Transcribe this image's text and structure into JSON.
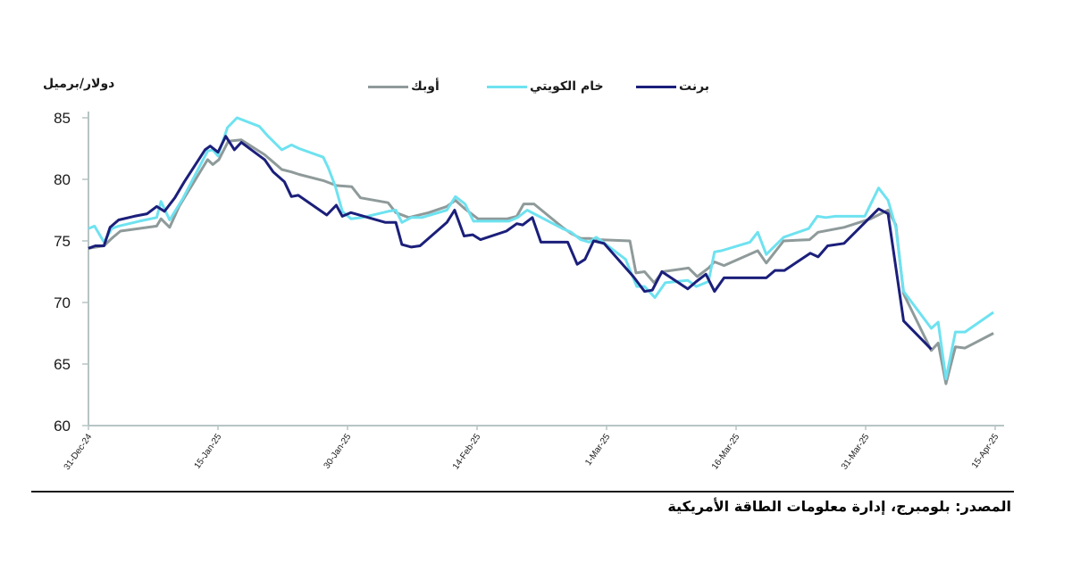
{
  "chart_data": {
    "type": "line",
    "title": "",
    "ylabel": "دولار/برميل",
    "xlabel": "",
    "ylim": [
      60,
      85
    ],
    "yticks": [
      60,
      65,
      70,
      75,
      80,
      85
    ],
    "xticks": [
      "31-Dec-24",
      "15-Jan-25",
      "30-Jan-25",
      "14-Feb-25",
      "1-Mar-25",
      "16-Mar-25",
      "31-Mar-25",
      "15-Apr-25"
    ],
    "x_unit": "days since 31-Dec-24",
    "xlim": [
      0,
      105
    ],
    "legend_position": "top",
    "grid": false,
    "series": [
      {
        "name": "برنت",
        "color": "#1b1f7a",
        "points": [
          [
            0,
            74.4
          ],
          [
            0.8,
            74.6
          ],
          [
            1.8,
            74.6
          ],
          [
            2.5,
            76.1
          ],
          [
            3.5,
            76.7
          ],
          [
            5.3,
            77.0
          ],
          [
            6.8,
            77.2
          ],
          [
            7.9,
            77.8
          ],
          [
            8.8,
            77.4
          ],
          [
            10.0,
            78.5
          ],
          [
            11.1,
            79.8
          ],
          [
            13.5,
            82.4
          ],
          [
            14.1,
            82.7
          ],
          [
            15.0,
            82.2
          ],
          [
            15.9,
            83.5
          ],
          [
            16.9,
            82.4
          ],
          [
            17.7,
            83.0
          ],
          [
            20.4,
            81.6
          ],
          [
            21.4,
            80.6
          ],
          [
            22.7,
            79.8
          ],
          [
            23.5,
            78.6
          ],
          [
            24.3,
            78.7
          ],
          [
            27.6,
            77.1
          ],
          [
            28.7,
            77.9
          ],
          [
            29.4,
            77.0
          ],
          [
            30.4,
            77.3
          ],
          [
            34.4,
            76.5
          ],
          [
            35.6,
            76.5
          ],
          [
            36.3,
            74.7
          ],
          [
            37.4,
            74.5
          ],
          [
            38.4,
            74.6
          ],
          [
            41.5,
            76.5
          ],
          [
            42.4,
            77.5
          ],
          [
            43.5,
            75.4
          ],
          [
            44.5,
            75.5
          ],
          [
            45.4,
            75.1
          ],
          [
            48.4,
            75.8
          ],
          [
            49.6,
            76.4
          ],
          [
            50.3,
            76.3
          ],
          [
            51.4,
            76.9
          ],
          [
            52.4,
            74.9
          ],
          [
            55.5,
            74.9
          ],
          [
            56.6,
            73.1
          ],
          [
            57.5,
            73.5
          ],
          [
            58.5,
            75.0
          ],
          [
            59.7,
            74.8
          ],
          [
            63.1,
            72.1
          ],
          [
            64.4,
            70.9
          ],
          [
            65.3,
            71.0
          ],
          [
            66.4,
            72.5
          ],
          [
            69.4,
            71.1
          ],
          [
            70.4,
            71.7
          ],
          [
            71.5,
            72.3
          ],
          [
            72.5,
            70.9
          ],
          [
            73.6,
            72.0
          ],
          [
            78.5,
            72.0
          ],
          [
            79.5,
            72.6
          ],
          [
            80.6,
            72.6
          ],
          [
            83.6,
            74.0
          ],
          [
            84.5,
            73.7
          ],
          [
            85.6,
            74.6
          ],
          [
            87.5,
            74.8
          ],
          [
            91.5,
            77.6
          ],
          [
            92.6,
            77.2
          ],
          [
            94.4,
            68.5
          ],
          [
            97.6,
            66.2
          ]
        ]
      },
      {
        "name": "خام الكويتي",
        "color": "#6ee2f0",
        "points": [
          [
            0,
            76.0
          ],
          [
            0.7,
            76.2
          ],
          [
            1.8,
            74.9
          ],
          [
            2.7,
            76.0
          ],
          [
            3.5,
            76.2
          ],
          [
            5.9,
            76.6
          ],
          [
            7.9,
            76.9
          ],
          [
            8.4,
            78.2
          ],
          [
            9.4,
            76.7
          ],
          [
            10.9,
            78.4
          ],
          [
            13.8,
            82.3
          ],
          [
            14.4,
            82.4
          ],
          [
            15.0,
            81.9
          ],
          [
            16.1,
            84.2
          ],
          [
            17.2,
            85.0
          ],
          [
            19.8,
            84.3
          ],
          [
            20.8,
            83.5
          ],
          [
            22.4,
            82.4
          ],
          [
            23.5,
            82.8
          ],
          [
            24.4,
            82.5
          ],
          [
            27.2,
            81.8
          ],
          [
            27.8,
            80.9
          ],
          [
            28.6,
            79.4
          ],
          [
            29.4,
            77.4
          ],
          [
            30.4,
            76.8
          ],
          [
            31.7,
            76.9
          ],
          [
            34.7,
            77.4
          ],
          [
            35.6,
            77.5
          ],
          [
            36.3,
            76.5
          ],
          [
            37.4,
            76.9
          ],
          [
            38.6,
            76.9
          ],
          [
            41.5,
            77.5
          ],
          [
            42.5,
            78.6
          ],
          [
            43.6,
            78.0
          ],
          [
            44.6,
            76.6
          ],
          [
            46.0,
            76.6
          ],
          [
            48.7,
            76.6
          ],
          [
            49.7,
            76.9
          ],
          [
            50.8,
            77.5
          ],
          [
            54.9,
            76.0
          ],
          [
            55.9,
            75.7
          ],
          [
            57.0,
            75.1
          ],
          [
            58.0,
            74.9
          ],
          [
            58.8,
            75.3
          ],
          [
            59.6,
            74.9
          ],
          [
            62.2,
            73.5
          ],
          [
            63.5,
            71.3
          ],
          [
            64.4,
            71.3
          ],
          [
            65.6,
            70.4
          ],
          [
            66.8,
            71.6
          ],
          [
            69.4,
            71.8
          ],
          [
            70.4,
            71.3
          ],
          [
            71.8,
            71.7
          ],
          [
            72.5,
            74.1
          ],
          [
            73.3,
            74.2
          ],
          [
            76.6,
            74.9
          ],
          [
            77.5,
            75.7
          ],
          [
            78.5,
            73.9
          ],
          [
            80.5,
            75.3
          ],
          [
            83.4,
            76.0
          ],
          [
            84.4,
            77.0
          ],
          [
            85.4,
            76.9
          ],
          [
            86.5,
            77.0
          ],
          [
            89.9,
            77.0
          ],
          [
            91.5,
            79.3
          ],
          [
            92.6,
            78.3
          ],
          [
            93.5,
            76.1
          ],
          [
            94.4,
            70.9
          ],
          [
            97.6,
            67.9
          ],
          [
            98.4,
            68.4
          ],
          [
            99.3,
            63.8
          ],
          [
            100.4,
            67.6
          ],
          [
            101.5,
            67.6
          ],
          [
            104.8,
            69.2
          ]
        ]
      },
      {
        "name": "أوبك",
        "color": "#8f9a9a",
        "points": [
          [
            0,
            74.4
          ],
          [
            1.8,
            74.6
          ],
          [
            2.7,
            75.2
          ],
          [
            3.7,
            75.8
          ],
          [
            7.9,
            76.2
          ],
          [
            8.4,
            76.8
          ],
          [
            9.4,
            76.1
          ],
          [
            10.5,
            77.8
          ],
          [
            13.8,
            81.6
          ],
          [
            14.4,
            81.2
          ],
          [
            15.1,
            81.6
          ],
          [
            16.2,
            83.1
          ],
          [
            17.7,
            83.2
          ],
          [
            20.4,
            82.0
          ],
          [
            21.4,
            81.4
          ],
          [
            22.4,
            80.8
          ],
          [
            23.5,
            80.6
          ],
          [
            24.4,
            80.4
          ],
          [
            27.2,
            79.9
          ],
          [
            28.7,
            79.5
          ],
          [
            30.5,
            79.4
          ],
          [
            31.5,
            78.5
          ],
          [
            34.7,
            78.1
          ],
          [
            35.6,
            77.3
          ],
          [
            37.1,
            76.9
          ],
          [
            39.4,
            77.3
          ],
          [
            41.5,
            77.8
          ],
          [
            42.5,
            78.3
          ],
          [
            43.6,
            77.6
          ],
          [
            45.1,
            76.8
          ],
          [
            48.5,
            76.8
          ],
          [
            49.6,
            77.0
          ],
          [
            50.4,
            78.0
          ],
          [
            51.6,
            78.0
          ],
          [
            54.9,
            76.1
          ],
          [
            55.9,
            75.6
          ],
          [
            57.0,
            75.2
          ],
          [
            58.0,
            75.2
          ],
          [
            59.1,
            75.1
          ],
          [
            62.7,
            75.0
          ],
          [
            63.4,
            72.4
          ],
          [
            64.4,
            72.5
          ],
          [
            65.5,
            71.6
          ],
          [
            66.5,
            72.5
          ],
          [
            69.5,
            72.8
          ],
          [
            70.5,
            72.1
          ],
          [
            71.8,
            72.8
          ],
          [
            72.5,
            73.3
          ],
          [
            73.6,
            73.0
          ],
          [
            77.5,
            74.2
          ],
          [
            78.5,
            73.2
          ],
          [
            80.5,
            75.0
          ],
          [
            83.5,
            75.1
          ],
          [
            84.5,
            75.7
          ],
          [
            87.5,
            76.1
          ],
          [
            90.6,
            76.8
          ],
          [
            92.6,
            77.5
          ],
          [
            93.5,
            76.3
          ],
          [
            94.4,
            70.7
          ],
          [
            97.6,
            66.1
          ],
          [
            98.4,
            66.7
          ],
          [
            99.3,
            63.4
          ],
          [
            100.4,
            66.4
          ],
          [
            101.5,
            66.3
          ],
          [
            104.8,
            67.5
          ]
        ]
      }
    ]
  },
  "header": {
    "unit_label": "دولار/برميل",
    "legend": [
      {
        "label": "برنت",
        "color": "#1b1f7a"
      },
      {
        "label": "خام الكويتي",
        "color": "#6ee2f0"
      },
      {
        "label": "أوبك",
        "color": "#8f9a9a"
      }
    ]
  },
  "footer": {
    "source": "المصدر: بلومبرج، إدارة معلومات الطاقة الأمريكية"
  },
  "axis": {
    "color": "#b7c4c4"
  }
}
